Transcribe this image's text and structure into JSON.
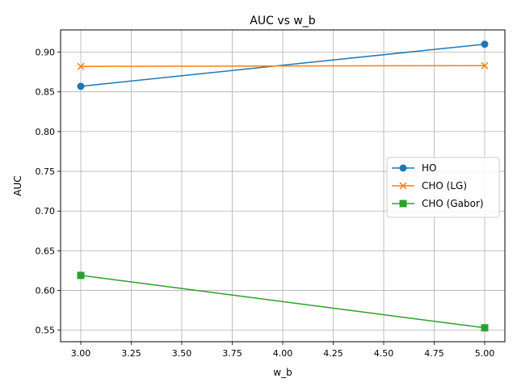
{
  "chart_data": {
    "type": "line",
    "title": "AUC vs w_b",
    "xlabel": "w_b",
    "ylabel": "AUC",
    "xlim": [
      2.9,
      5.1
    ],
    "ylim": [
      0.5355,
      0.928
    ],
    "x_ticks": [
      3.0,
      3.25,
      3.5,
      3.75,
      4.0,
      4.25,
      4.5,
      4.75,
      5.0
    ],
    "x_tick_labels": [
      "3.00",
      "3.25",
      "3.50",
      "3.75",
      "4.00",
      "4.25",
      "4.50",
      "4.75",
      "5.00"
    ],
    "y_ticks": [
      0.55,
      0.6,
      0.65,
      0.7,
      0.75,
      0.8,
      0.85,
      0.9
    ],
    "y_tick_labels": [
      "0.55",
      "0.60",
      "0.65",
      "0.70",
      "0.75",
      "0.80",
      "0.85",
      "0.90"
    ],
    "grid": true,
    "legend_position": "center-right",
    "x": [
      3.0,
      5.0
    ],
    "series": [
      {
        "name": "HO",
        "values": [
          0.857,
          0.91
        ],
        "color": "#1f77b4",
        "marker": "circle"
      },
      {
        "name": "CHO (LG)",
        "values": [
          0.882,
          0.883
        ],
        "color": "#ff7f0e",
        "marker": "x"
      },
      {
        "name": "CHO (Gabor)",
        "values": [
          0.619,
          0.553
        ],
        "color": "#2ca02c",
        "marker": "square"
      }
    ]
  }
}
